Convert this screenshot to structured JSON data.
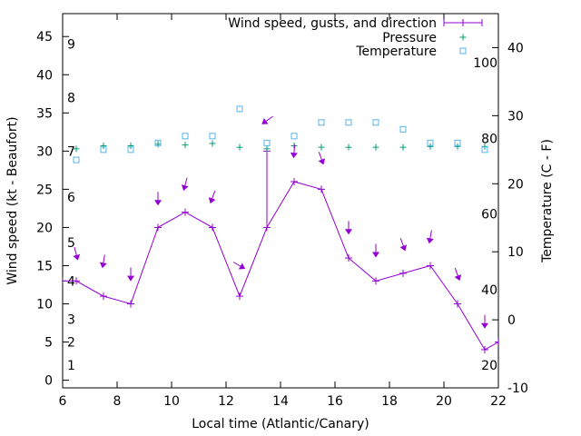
{
  "chart_data": {
    "type": "line",
    "xlabel": "Local time (Atlantic/Canary)",
    "ylabel": "Wind speed (kt - Beaufort)",
    "y2label": "Temperature (C - F)",
    "xlim": [
      6,
      22
    ],
    "ylim": [
      -1,
      48
    ],
    "y2lim": [
      -10,
      45
    ],
    "x_ticks": [
      6,
      8,
      10,
      12,
      14,
      16,
      18,
      20,
      22
    ],
    "y_ticks": [
      0,
      5,
      10,
      15,
      20,
      25,
      30,
      35,
      40,
      45
    ],
    "y2_ticks": [
      -10,
      0,
      10,
      20,
      30,
      40
    ],
    "fahrenheit_ticks": [
      20,
      40,
      60,
      80,
      100
    ],
    "beaufort_ticks": [
      1,
      2,
      3,
      4,
      5,
      6,
      7,
      8,
      9
    ],
    "grid": false,
    "legend_position": "top-right",
    "series": [
      {
        "name": "Wind speed, gusts, and direction",
        "color": "#9400d3",
        "x": [
          6,
          6.5,
          7.5,
          8.5,
          9.5,
          10.5,
          11.5,
          12.5,
          13.5,
          14.5,
          15.5,
          16.5,
          17.5,
          18.5,
          19.5,
          20.5,
          21.5,
          22
        ],
        "y": [
          13,
          13,
          11,
          10,
          20,
          22,
          20,
          11,
          20,
          26,
          25,
          16,
          13,
          14,
          15,
          10,
          4,
          5
        ],
        "gust_x": 13.5,
        "gust_y": 30,
        "direction_x": [
          6.5,
          7.5,
          8.5,
          9.5,
          10.5,
          11.5,
          12.5,
          13.5,
          14.5,
          15.5,
          16.5,
          17.5,
          18.5,
          19.5,
          20.5,
          21.5
        ],
        "direction_y": [
          16.5,
          15.5,
          13.8,
          23.7,
          25.6,
          23.9,
          15.0,
          34.0,
          29.9,
          29.0,
          19.9,
          16.9,
          17.7,
          18.7,
          13.8,
          7.6
        ],
        "direction_deg": [
          345,
          10,
          0,
          0,
          15,
          20,
          300,
          55,
          5,
          340,
          0,
          0,
          340,
          10,
          340,
          0
        ]
      },
      {
        "name": "Pressure",
        "color": "#009e73",
        "x": [
          6.5,
          7.5,
          8.5,
          9.5,
          10.5,
          11.5,
          12.5,
          13.5,
          14.5,
          15.5,
          16.5,
          17.5,
          18.5,
          19.5,
          20.5,
          21.5
        ],
        "y": [
          30.3,
          30.7,
          30.7,
          30.9,
          30.8,
          31.0,
          30.5,
          30.3,
          30.7,
          30.5,
          30.5,
          30.5,
          30.5,
          30.6,
          30.6,
          30.6
        ]
      },
      {
        "name": "Temperature",
        "color": "#56b4e9",
        "x": [
          6.5,
          7.5,
          8.5,
          9.5,
          10.5,
          11.5,
          12.5,
          13.5,
          14.5,
          15.5,
          16.5,
          17.5,
          18.5,
          19.5,
          20.5,
          21.5
        ],
        "y": [
          23.5,
          25,
          25,
          26,
          27,
          27,
          31,
          26,
          27,
          29,
          29,
          29,
          28,
          26,
          26,
          25
        ],
        "axis": "y2"
      }
    ]
  }
}
